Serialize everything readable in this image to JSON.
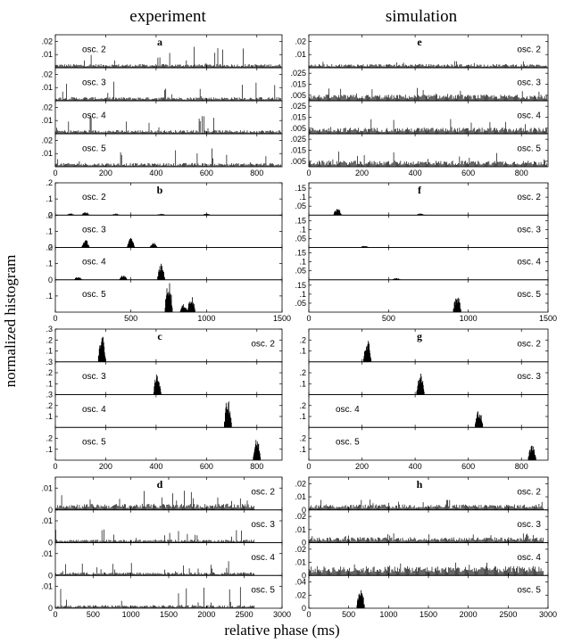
{
  "figure": {
    "col_titles": [
      "experiment",
      "simulation"
    ],
    "ylabel": "normalized histogram",
    "xlabel": "relative phase (ms)"
  },
  "chart_data": [
    {
      "type": "bar",
      "panel": "a",
      "column": 0,
      "group": 0,
      "xlim": [
        0,
        900
      ],
      "xticks": [
        0,
        200,
        400,
        600,
        800
      ],
      "subplots": [
        {
          "name": "osc. 2",
          "ylim": [
            0,
            0.025
          ],
          "yticks": [
            0.01,
            0.02
          ],
          "base": 0.002,
          "peak": 0.016,
          "spread": "uniform",
          "label_pos": "left"
        },
        {
          "name": "osc. 3",
          "ylim": [
            0,
            0.025
          ],
          "yticks": [
            0.01,
            0.02
          ],
          "base": 0.002,
          "peak": 0.015,
          "spread": "uniform",
          "label_pos": "left"
        },
        {
          "name": "osc. 4",
          "ylim": [
            0,
            0.025
          ],
          "yticks": [
            0.01,
            0.02
          ],
          "base": 0.002,
          "peak": 0.014,
          "spread": "uniform",
          "label_pos": "left"
        },
        {
          "name": "osc. 5",
          "ylim": [
            0,
            0.025
          ],
          "yticks": [
            0.01,
            0.02
          ],
          "base": 0.002,
          "peak": 0.014,
          "spread": "uniform",
          "label_pos": "left"
        }
      ]
    },
    {
      "type": "bar",
      "panel": "e",
      "column": 1,
      "group": 0,
      "xlim": [
        0,
        900
      ],
      "xticks": [
        0,
        200,
        400,
        600,
        800
      ],
      "subplots": [
        {
          "name": "osc. 2",
          "ylim": [
            0,
            0.025
          ],
          "yticks": [
            0.01,
            0.02
          ],
          "base": 0.002,
          "peak": 0.006,
          "spread": "uniform",
          "label_pos": "right"
        },
        {
          "name": "osc. 3",
          "ylim": [
            0,
            0.03
          ],
          "yticks": [
            0.005,
            0.015,
            0.025
          ],
          "base": 0.004,
          "peak": 0.012,
          "spread": "uniform",
          "label_pos": "right"
        },
        {
          "name": "osc. 4",
          "ylim": [
            0,
            0.03
          ],
          "yticks": [
            0.005,
            0.015,
            0.025
          ],
          "base": 0.004,
          "peak": 0.014,
          "spread": "uniform",
          "label_pos": "right"
        },
        {
          "name": "osc. 5",
          "ylim": [
            0,
            0.03
          ],
          "yticks": [
            0.005,
            0.015,
            0.025
          ],
          "base": 0.004,
          "peak": 0.014,
          "spread": "uniform",
          "label_pos": "right"
        }
      ]
    },
    {
      "type": "bar",
      "panel": "b",
      "column": 0,
      "group": 1,
      "xlim": [
        0,
        1500
      ],
      "xticks": [
        0,
        500,
        1000,
        1500
      ],
      "subplots": [
        {
          "name": "osc. 2",
          "ylim": [
            0,
            0.2
          ],
          "yticks": [
            0,
            0.1,
            0.2
          ],
          "clusters": [
            [
              100,
              0.01
            ],
            [
              200,
              0.02
            ],
            [
              400,
              0.01
            ],
            [
              700,
              0.01
            ],
            [
              1000,
              0.01
            ]
          ],
          "label_pos": "left"
        },
        {
          "name": "osc. 3",
          "ylim": [
            0,
            0.2
          ],
          "yticks": [
            0,
            0.1,
            0.2
          ],
          "clusters": [
            [
              200,
              0.05
            ],
            [
              500,
              0.06
            ],
            [
              650,
              0.03
            ]
          ],
          "label_pos": "left"
        },
        {
          "name": "osc. 4",
          "ylim": [
            0,
            0.2
          ],
          "yticks": [
            0,
            0.1,
            0.2
          ],
          "clusters": [
            [
              150,
              0.02
            ],
            [
              450,
              0.03
            ],
            [
              700,
              0.1
            ]
          ],
          "label_pos": "left"
        },
        {
          "name": "osc. 5",
          "ylim": [
            0,
            0.2
          ],
          "yticks": [
            0.1
          ],
          "clusters": [
            [
              750,
              0.2
            ],
            [
              850,
              0.05
            ],
            [
              900,
              0.1
            ]
          ],
          "label_pos": "left"
        }
      ]
    },
    {
      "type": "bar",
      "panel": "f",
      "column": 1,
      "group": 1,
      "xlim": [
        0,
        1500
      ],
      "xticks": [
        0,
        500,
        1000,
        1500
      ],
      "subplots": [
        {
          "name": "osc. 2",
          "ylim": [
            0,
            0.18
          ],
          "yticks": [
            0.05,
            0.1,
            0.15
          ],
          "clusters": [
            [
              180,
              0.04
            ],
            [
              700,
              0.01
            ]
          ],
          "label_pos": "right"
        },
        {
          "name": "osc. 3",
          "ylim": [
            0,
            0.18
          ],
          "yticks": [
            0.05,
            0.1,
            0.15
          ],
          "clusters": [
            [
              350,
              0.01
            ]
          ],
          "label_pos": "right"
        },
        {
          "name": "osc. 4",
          "ylim": [
            0,
            0.18
          ],
          "yticks": [
            0.05,
            0.1,
            0.15
          ],
          "clusters": [
            [
              550,
              0.01
            ]
          ],
          "label_pos": "right"
        },
        {
          "name": "osc. 5",
          "ylim": [
            0,
            0.18
          ],
          "yticks": [
            0.05,
            0.1,
            0.15
          ],
          "clusters": [
            [
              930,
              0.1
            ]
          ],
          "label_pos": "right"
        }
      ]
    },
    {
      "type": "bar",
      "panel": "c",
      "column": 0,
      "group": 2,
      "xlim": [
        0,
        900
      ],
      "xticks": [
        0,
        200,
        400,
        600,
        800
      ],
      "subplots": [
        {
          "name": "osc. 2",
          "ylim": [
            0,
            0.3
          ],
          "yticks": [
            0.1,
            0.2,
            0.3
          ],
          "clusters": [
            [
              185,
              0.26
            ]
          ],
          "label_pos": "right"
        },
        {
          "name": "osc. 3",
          "ylim": [
            0,
            0.3
          ],
          "yticks": [
            0.1,
            0.2,
            0.3
          ],
          "clusters": [
            [
              405,
              0.2
            ]
          ],
          "label_pos": "left"
        },
        {
          "name": "osc. 4",
          "ylim": [
            0,
            0.3
          ],
          "yticks": [
            0.1,
            0.2,
            0.3
          ],
          "clusters": [
            [
              685,
              0.28
            ]
          ],
          "label_pos": "left"
        },
        {
          "name": "osc. 5",
          "ylim": [
            0,
            0.3
          ],
          "yticks": [
            0.1,
            0.2
          ],
          "clusters": [
            [
              800,
              0.2
            ]
          ],
          "label_pos": "left"
        }
      ]
    },
    {
      "type": "bar",
      "panel": "g",
      "column": 1,
      "group": 2,
      "xlim": [
        0,
        900
      ],
      "xticks": [
        0,
        200,
        400,
        600,
        800
      ],
      "subplots": [
        {
          "name": "osc. 2",
          "ylim": [
            0,
            0.3
          ],
          "yticks": [
            0.1,
            0.2
          ],
          "clusters": [
            [
              220,
              0.22
            ]
          ],
          "label_pos": "right"
        },
        {
          "name": "osc. 3",
          "ylim": [
            0,
            0.3
          ],
          "yticks": [
            0.1,
            0.2
          ],
          "clusters": [
            [
              420,
              0.2
            ]
          ],
          "label_pos": "right"
        },
        {
          "name": "osc. 4",
          "ylim": [
            0,
            0.3
          ],
          "yticks": [
            0.1,
            0.2
          ],
          "clusters": [
            [
              640,
              0.17
            ]
          ],
          "label_pos": "left"
        },
        {
          "name": "osc. 5",
          "ylim": [
            0,
            0.3
          ],
          "yticks": [
            0.1,
            0.2
          ],
          "clusters": [
            [
              840,
              0.15
            ]
          ],
          "label_pos": "left"
        }
      ]
    },
    {
      "type": "bar",
      "panel": "d",
      "column": 0,
      "group": 3,
      "xlim": [
        0,
        3000
      ],
      "xticks": [
        0,
        500,
        1000,
        1500,
        2000,
        2500,
        3000
      ],
      "subplots": [
        {
          "name": "osc. 2",
          "ylim": [
            0,
            0.015
          ],
          "yticks": [
            0,
            0.01
          ],
          "base": 0.002,
          "peak": 0.01,
          "spread": "uniform",
          "xmax": 2650,
          "label_pos": "right"
        },
        {
          "name": "osc. 3",
          "ylim": [
            0,
            0.015
          ],
          "yticks": [
            0,
            0.01
          ],
          "base": 0.001,
          "peak": 0.006,
          "spread": "uniform",
          "xmax": 2650,
          "label_pos": "right"
        },
        {
          "name": "osc. 4",
          "ylim": [
            0,
            0.015
          ],
          "yticks": [
            0,
            0.01
          ],
          "base": 0.001,
          "peak": 0.008,
          "spread": "uniform",
          "xmax": 2650,
          "label_pos": "right"
        },
        {
          "name": "osc. 5",
          "ylim": [
            0,
            0.015
          ],
          "yticks": [
            0,
            0.01
          ],
          "base": 0.001,
          "peak": 0.01,
          "spread": "uniform",
          "xmax": 2650,
          "label_pos": "right"
        }
      ]
    },
    {
      "type": "bar",
      "panel": "h",
      "column": 1,
      "group": 3,
      "xlim": [
        0,
        3000
      ],
      "xticks": [
        0,
        500,
        1000,
        1500,
        2000,
        2500,
        3000
      ],
      "subplots": [
        {
          "name": "osc. 2",
          "ylim": [
            0,
            0.025
          ],
          "yticks": [
            0,
            0.01,
            0.02
          ],
          "base": 0.003,
          "peak": 0.008,
          "spread": "uniform",
          "xmax": 2950,
          "label_pos": "right"
        },
        {
          "name": "osc. 3",
          "ylim": [
            0,
            0.025
          ],
          "yticks": [
            0,
            0.01,
            0.02
          ],
          "base": 0.003,
          "peak": 0.008,
          "spread": "uniform",
          "xmax": 2950,
          "label_pos": "right"
        },
        {
          "name": "osc. 4",
          "ylim": [
            0,
            0.025
          ],
          "yticks": [
            0,
            0.01,
            0.02
          ],
          "base": 0.005,
          "peak": 0.01,
          "spread": "uniform",
          "xmax": 2950,
          "label_pos": "right"
        },
        {
          "name": "osc. 5",
          "ylim": [
            0,
            0.05
          ],
          "yticks": [
            0,
            0.02,
            0.04
          ],
          "clusters": [
            [
              650,
              0.03
            ]
          ],
          "cluster_width": 400,
          "label_pos": "right"
        }
      ]
    }
  ]
}
